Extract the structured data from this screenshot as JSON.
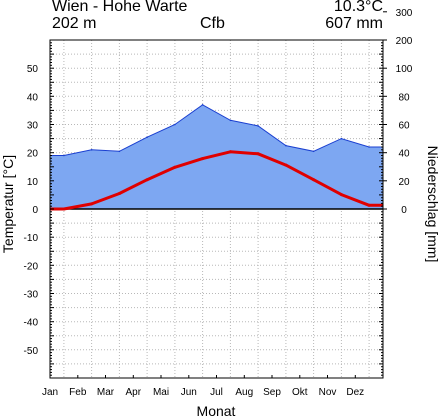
{
  "header": {
    "station": "Wien - Hohe Warte",
    "annual_temp": "10.3°C",
    "elevation": "202 m",
    "climate_class": "Cfb",
    "annual_precip": "607 mm"
  },
  "chart_data": {
    "type": "line",
    "title": "Wien - Hohe Warte",
    "xlabel": "Monat",
    "ylabel_left": "Temperatur [°C]",
    "ylabel_right": "Niederschlag [mm]",
    "categories": [
      "Jan",
      "Feb",
      "Mar",
      "Apr",
      "Mai",
      "Jun",
      "Jul",
      "Aug",
      "Sep",
      "Okt",
      "Nov",
      "Dez"
    ],
    "temp_ylim": [
      -60,
      60
    ],
    "temp_ticks": [
      -50,
      -40,
      -30,
      -20,
      -10,
      0,
      10,
      20,
      30,
      40,
      50
    ],
    "precip_ticks": [
      0,
      20,
      40,
      60,
      80,
      100,
      200,
      300,
      400,
      500,
      600,
      700,
      800,
      900
    ],
    "grid": true,
    "series": [
      {
        "key": "temperature",
        "axis": "left",
        "unit": "°C",
        "color": "#e00000",
        "values": [
          0.0,
          1.8,
          5.5,
          10.4,
          14.8,
          17.9,
          20.3,
          19.6,
          15.6,
          10.4,
          5.1,
          1.3
        ]
      },
      {
        "key": "precipitation",
        "axis": "right",
        "unit": "mm",
        "color": "#7da7f2",
        "values": [
          38,
          42,
          41,
          51,
          60,
          74,
          63,
          59,
          45,
          41,
          50,
          44
        ]
      }
    ]
  }
}
